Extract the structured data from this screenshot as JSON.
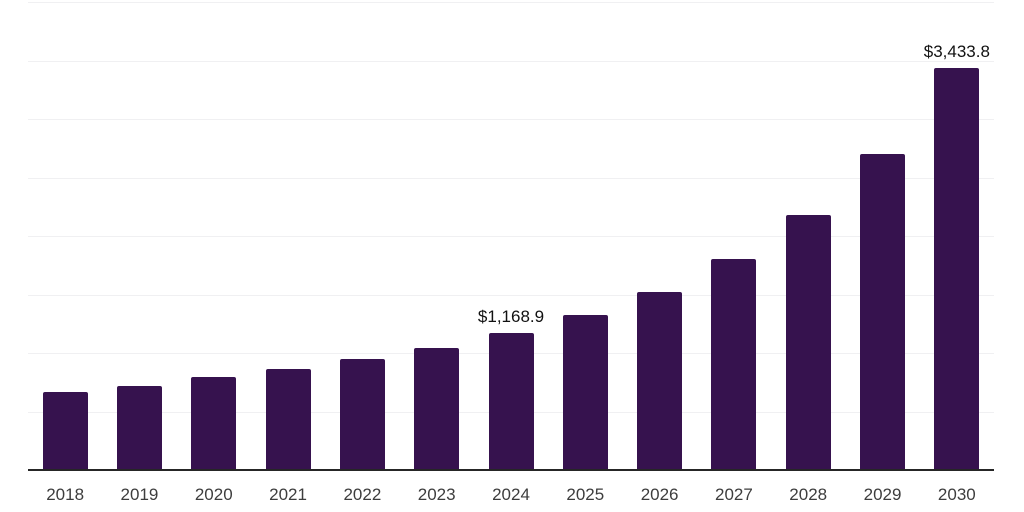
{
  "chart_data": {
    "type": "bar",
    "title": "",
    "xlabel": "",
    "ylabel": "",
    "categories": [
      "2018",
      "2019",
      "2020",
      "2021",
      "2022",
      "2023",
      "2024",
      "2025",
      "2026",
      "2027",
      "2028",
      "2029",
      "2030"
    ],
    "values": [
      667,
      718,
      795,
      863,
      949,
      1043,
      1168.9,
      1325,
      1521,
      1803,
      2179,
      2701,
      3433.8
    ],
    "data_labels": [
      "",
      "",
      "",
      "",
      "",
      "",
      "$1,168.9",
      "",
      "",
      "",
      "",
      "",
      "$3,433.8"
    ],
    "ylim": [
      0,
      4000
    ],
    "gridline_step": 500,
    "grid": "horizontal",
    "y_tick_labels_visible": false,
    "legend_position": "none",
    "bar_color": "#36124E",
    "gridline_color": "#f0f0f2",
    "axis_line_color": "#262626",
    "x_label_color": "#3d3d3d",
    "value_label_color": "#111111",
    "background_color": "#ffffff"
  }
}
